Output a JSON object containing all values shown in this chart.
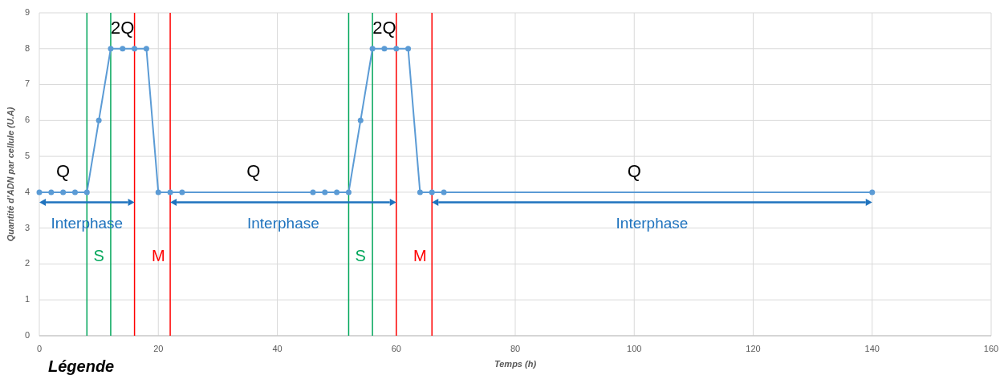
{
  "chart_data": {
    "type": "line",
    "xlabel": "Temps (h)",
    "ylabel": "Quantité d'ADN par cellule (U.A)",
    "xlim": [
      0,
      160
    ],
    "xticks": [
      0,
      20,
      40,
      60,
      80,
      100,
      120,
      140,
      160
    ],
    "ylim": [
      0,
      9
    ],
    "yticks": [
      0,
      1,
      2,
      3,
      4,
      5,
      6,
      7,
      8,
      9
    ],
    "grid": true,
    "marker": "circle",
    "line_style": "solid",
    "series": [
      {
        "color": "#5b9bd5",
        "x": [
          0,
          2,
          4,
          6,
          8,
          10,
          12,
          14,
          16,
          18,
          20,
          22,
          24,
          46,
          48,
          50,
          52,
          54,
          56,
          58,
          60,
          62,
          64,
          66,
          68,
          140
        ],
        "values": [
          4,
          4,
          4,
          4,
          4,
          6,
          8,
          8,
          8,
          8,
          4,
          4,
          4,
          4,
          4,
          4,
          4,
          6,
          8,
          8,
          8,
          8,
          4,
          4,
          4,
          4
        ]
      }
    ],
    "ref_lines": [
      {
        "axis": "x",
        "value": 8,
        "color": "#00a65a"
      },
      {
        "axis": "x",
        "value": 12,
        "color": "#00a65a"
      },
      {
        "axis": "x",
        "value": 16,
        "color": "#ff0000"
      },
      {
        "axis": "x",
        "value": 22,
        "color": "#ff0000"
      },
      {
        "axis": "x",
        "value": 52,
        "color": "#00a65a"
      },
      {
        "axis": "x",
        "value": 56,
        "color": "#00a65a"
      },
      {
        "axis": "x",
        "value": 60,
        "color": "#ff0000"
      },
      {
        "axis": "x",
        "value": 66,
        "color": "#ff0000"
      }
    ],
    "annotations": [
      "Q",
      "2Q",
      "S",
      "M",
      "Q",
      "2Q",
      "S",
      "M",
      "Q",
      "Interphase",
      "Interphase",
      "Interphase",
      "Légende"
    ]
  }
}
